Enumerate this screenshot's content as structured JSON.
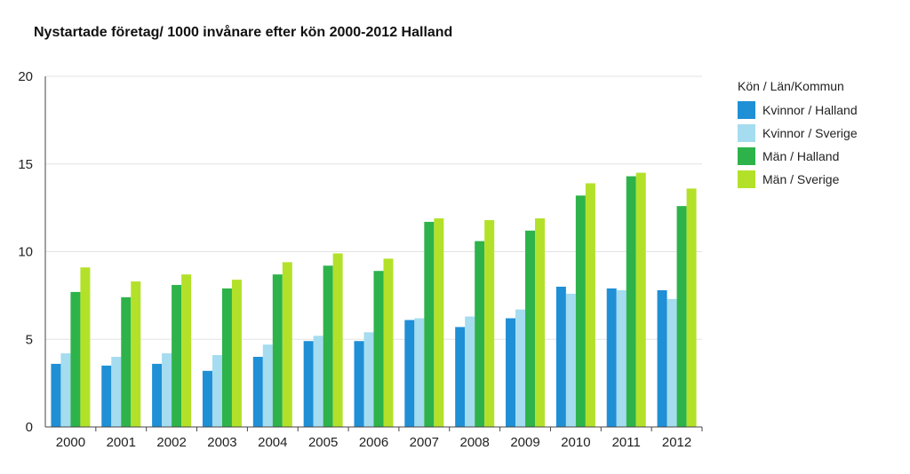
{
  "chart_data": {
    "type": "bar",
    "title": "Nystartade företag/ 1000 invånare efter kön 2000-2012 Halland",
    "xlabel": "",
    "ylabel": "",
    "ylim": [
      0,
      20
    ],
    "yticks": [
      0,
      5,
      10,
      15,
      20
    ],
    "grid": true,
    "legend_title": "Kön / Län/Kommun",
    "legend_position": "right",
    "categories": [
      "2000",
      "2001",
      "2002",
      "2003",
      "2004",
      "2005",
      "2006",
      "2007",
      "2008",
      "2009",
      "2010",
      "2011",
      "2012"
    ],
    "series": [
      {
        "name": "Kvinnor / Halland",
        "color": "#1f8fd6",
        "values": [
          3.6,
          3.5,
          3.6,
          3.2,
          4.0,
          4.9,
          4.9,
          6.1,
          5.7,
          6.2,
          8.0,
          7.9,
          7.8
        ]
      },
      {
        "name": "Kvinnor / Sverige",
        "color": "#a5dcef",
        "values": [
          4.2,
          4.0,
          4.2,
          4.1,
          4.7,
          5.2,
          5.4,
          6.2,
          6.3,
          6.7,
          7.6,
          7.8,
          7.3
        ]
      },
      {
        "name": "Män / Halland",
        "color": "#2db34a",
        "values": [
          7.7,
          7.4,
          8.1,
          7.9,
          8.7,
          9.2,
          8.9,
          11.7,
          10.6,
          11.2,
          13.2,
          14.3,
          12.6
        ]
      },
      {
        "name": "Män / Sverige",
        "color": "#b3e12a",
        "values": [
          9.1,
          8.3,
          8.7,
          8.4,
          9.4,
          9.9,
          9.6,
          11.9,
          11.8,
          11.9,
          13.9,
          14.5,
          13.6
        ]
      }
    ]
  }
}
